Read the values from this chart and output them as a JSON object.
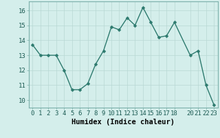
{
  "x": [
    0,
    1,
    2,
    3,
    4,
    5,
    6,
    7,
    8,
    9,
    10,
    11,
    12,
    13,
    14,
    15,
    16,
    17,
    18,
    20,
    21,
    22,
    23
  ],
  "y": [
    13.7,
    13.0,
    13.0,
    13.0,
    12.0,
    10.7,
    10.7,
    11.1,
    12.4,
    13.3,
    14.9,
    14.7,
    15.5,
    15.0,
    16.2,
    15.2,
    14.2,
    14.3,
    15.2,
    13.0,
    13.3,
    11.0,
    9.7
  ],
  "line_color": "#2d7a6e",
  "marker_color": "#2d7a6e",
  "bg_color": "#d4eeeb",
  "grid_color": "#b8d8d4",
  "xlabel": "Humidex (Indice chaleur)",
  "xlim": [
    -0.5,
    23.5
  ],
  "ylim": [
    9.5,
    16.6
  ],
  "yticks": [
    10,
    11,
    12,
    13,
    14,
    15,
    16
  ],
  "xticks": [
    0,
    1,
    2,
    3,
    4,
    5,
    6,
    7,
    8,
    9,
    10,
    11,
    12,
    13,
    14,
    15,
    16,
    17,
    18,
    20,
    21,
    22,
    23
  ],
  "tick_fontsize": 6.5,
  "xlabel_fontsize": 7.5,
  "line_width": 1.0,
  "marker_size": 2.5
}
